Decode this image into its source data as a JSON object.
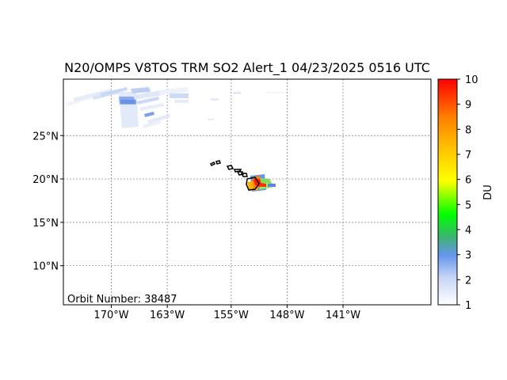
{
  "title": "N20/OMPS V8TOS TRM SO2 Alert_1 04/23/2025 0516 UTC",
  "orbit_label": "Orbit Number: 38487",
  "map": {
    "lon_range": [
      -176,
      -130
    ],
    "lat_range": [
      5.5,
      31.5
    ],
    "lon_ticks": [
      {
        "value": -170,
        "label": "170°W"
      },
      {
        "value": -163,
        "label": "163°W"
      },
      {
        "value": -155,
        "label": "155°W"
      },
      {
        "value": -148,
        "label": "148°W"
      },
      {
        "value": -141,
        "label": "141°W"
      }
    ],
    "lat_ticks": [
      {
        "value": 25,
        "label": "25°N"
      },
      {
        "value": 20,
        "label": "20°N"
      },
      {
        "value": 15,
        "label": "15°N"
      },
      {
        "value": 10,
        "label": "10°N"
      }
    ],
    "gridlines": true
  },
  "colorbar": {
    "unit": "DU",
    "min": 1,
    "max": 10,
    "ticks": [
      "1",
      "2",
      "3",
      "4",
      "5",
      "6",
      "7",
      "8",
      "9",
      "10"
    ],
    "colors": [
      "#ffffff",
      "#6495ed",
      "#00ff00",
      "#ffff00",
      "#ffa500",
      "#ff0000"
    ]
  }
}
